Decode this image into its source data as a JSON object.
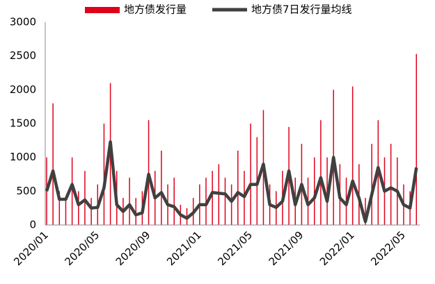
{
  "chart_data": {
    "type": "bar_line",
    "categories": [
      "2020/01",
      null,
      null,
      null,
      null,
      null,
      null,
      null,
      "2020/05",
      null,
      null,
      null,
      null,
      null,
      null,
      null,
      "2020/09",
      null,
      null,
      null,
      null,
      null,
      null,
      null,
      "2021/01",
      null,
      null,
      null,
      null,
      null,
      null,
      null,
      "2021/05",
      null,
      null,
      null,
      null,
      null,
      null,
      null,
      "2021/09",
      null,
      null,
      null,
      null,
      null,
      null,
      null,
      "2022/01",
      null,
      null,
      null,
      null,
      null,
      null,
      null,
      "2022/05",
      null,
      null
    ],
    "series": [
      {
        "name": "地方债发行量",
        "type": "bar",
        "color": "#e0001b",
        "values": [
          1000,
          1800,
          500,
          400,
          1000,
          500,
          800,
          400,
          600,
          1500,
          2100,
          800,
          400,
          700,
          400,
          500,
          1550,
          800,
          1100,
          600,
          700,
          300,
          250,
          400,
          600,
          700,
          800,
          900,
          700,
          600,
          1100,
          800,
          1500,
          1300,
          1700,
          600,
          500,
          800,
          1450,
          700,
          1200,
          700,
          1000,
          1550,
          1000,
          2000,
          900,
          700,
          2050,
          900,
          400,
          1200,
          1550,
          1000,
          1200,
          1000,
          600,
          500,
          2530
        ]
      },
      {
        "name": "地方债7日发行量均线",
        "type": "line",
        "color": "#404040",
        "values": [
          500,
          800,
          380,
          380,
          600,
          300,
          370,
          250,
          260,
          550,
          1230,
          300,
          200,
          300,
          150,
          180,
          750,
          400,
          480,
          300,
          270,
          150,
          100,
          180,
          300,
          300,
          480,
          470,
          460,
          350,
          480,
          420,
          600,
          600,
          900,
          300,
          260,
          350,
          800,
          300,
          600,
          300,
          400,
          700,
          350,
          1000,
          400,
          300,
          650,
          400,
          50,
          450,
          850,
          500,
          550,
          500,
          300,
          250,
          850
        ]
      }
    ],
    "ylim": [
      0,
      3000
    ],
    "yticks": [
      0,
      500,
      1000,
      1500,
      2000,
      2500,
      3000
    ],
    "grid": false
  }
}
